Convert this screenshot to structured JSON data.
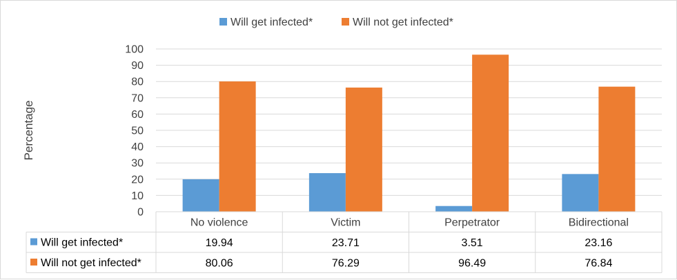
{
  "chart_data": {
    "type": "bar",
    "title": "",
    "xlabel": "",
    "ylabel": "Percentage",
    "ylim": [
      0,
      100
    ],
    "yticks": [
      0,
      10,
      20,
      30,
      40,
      50,
      60,
      70,
      80,
      90,
      100
    ],
    "grid": true,
    "legend_position": "top",
    "categories": [
      "No violence",
      "Victim",
      "Perpetrator",
      "Bidirectional"
    ],
    "series": [
      {
        "name": "Will get infected*",
        "color": "#5b9bd5",
        "values": [
          19.94,
          23.71,
          3.51,
          23.16
        ],
        "labels": [
          "19.94",
          "23.71",
          "3.51",
          "23.16"
        ]
      },
      {
        "name": "Will not get infected*",
        "color": "#ed7d31",
        "values": [
          80.06,
          76.29,
          96.49,
          76.84
        ],
        "labels": [
          "80.06",
          "76.29",
          "96.49",
          "76.84"
        ]
      }
    ],
    "data_table": true
  }
}
